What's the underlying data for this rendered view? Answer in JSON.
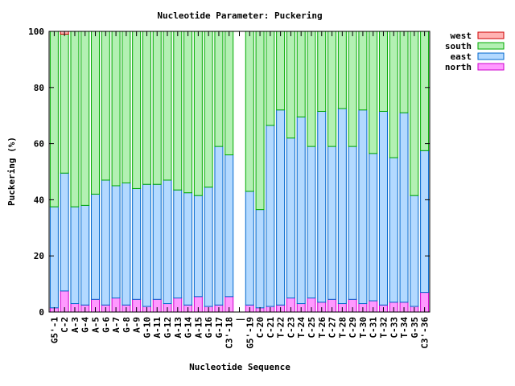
{
  "chart_data": {
    "type": "bar",
    "stacked": true,
    "title": "Nucleotide Parameter: Puckering",
    "xlabel": "Nucleotide Sequence",
    "ylabel": "Puckering (%)",
    "ylim": [
      0,
      100
    ],
    "yticks": [
      "0",
      "20",
      "40",
      "60",
      "80",
      "100"
    ],
    "grid": false,
    "legend_position": "top-right",
    "categories": [
      "G5'-1",
      "C-2",
      "A-3",
      "G-4",
      "A-5",
      "G-6",
      "A-7",
      "G-8",
      "A-9",
      "G-10",
      "A-11",
      "G-12",
      "A-13",
      "G-14",
      "A-15",
      "G-16",
      "G-17",
      "C3'-18",
      "|",
      "G5'-19",
      "C-20",
      "C-21",
      "T-22",
      "C-23",
      "T-24",
      "C-25",
      "T-26",
      "C-27",
      "T-28",
      "C-29",
      "T-30",
      "C-31",
      "T-32",
      "C-33",
      "T-34",
      "G-35",
      "C3'-36"
    ],
    "series": [
      {
        "name": "north",
        "color": "#ff99ff",
        "edge": "#cc00cc",
        "values": [
          1.5,
          7.5,
          3,
          2.5,
          4.5,
          2.5,
          5,
          2.5,
          4.5,
          2,
          4.5,
          3,
          5,
          2.5,
          5.5,
          2,
          2.5,
          5.5,
          null,
          2.5,
          1.5,
          2,
          2.5,
          5,
          3,
          5,
          3.5,
          4.5,
          3,
          4.5,
          3,
          4,
          2.5,
          3.5,
          3.5,
          2,
          7
        ]
      },
      {
        "name": "east",
        "color": "#b3d9ff",
        "edge": "#0066cc",
        "values": [
          36,
          42,
          34.5,
          35.5,
          37.5,
          44.5,
          40,
          43.5,
          39.5,
          43.5,
          41,
          44,
          38.5,
          40,
          36,
          42.5,
          56.5,
          50.5,
          null,
          40.5,
          35,
          64.5,
          69.5,
          57,
          66.5,
          54,
          68,
          54.5,
          69.5,
          54.5,
          69,
          52.5,
          69,
          51.5,
          67.5,
          39.5,
          50.5
        ]
      },
      {
        "name": "south",
        "color": "#b3f0b3",
        "edge": "#00aa00",
        "values": [
          62.5,
          49.5,
          62.5,
          62,
          58,
          53,
          55,
          54,
          56,
          54.5,
          54.5,
          53,
          56.5,
          57.5,
          58.5,
          55.5,
          41,
          44,
          null,
          57,
          63.5,
          33.5,
          28,
          38,
          30.5,
          41,
          28.5,
          41,
          27.5,
          41,
          28,
          43.5,
          28.5,
          45,
          29,
          58.5,
          42.5
        ]
      },
      {
        "name": "west",
        "color": "#ffb3b3",
        "edge": "#cc0000",
        "values": [
          0,
          1,
          0,
          0,
          0,
          0,
          0,
          0,
          0,
          0,
          0,
          0,
          0,
          0,
          0,
          0,
          0,
          0,
          null,
          0,
          0,
          0,
          0,
          0,
          0,
          0,
          0,
          0,
          0,
          0,
          0,
          0,
          0,
          0,
          0,
          0,
          0
        ]
      }
    ]
  }
}
